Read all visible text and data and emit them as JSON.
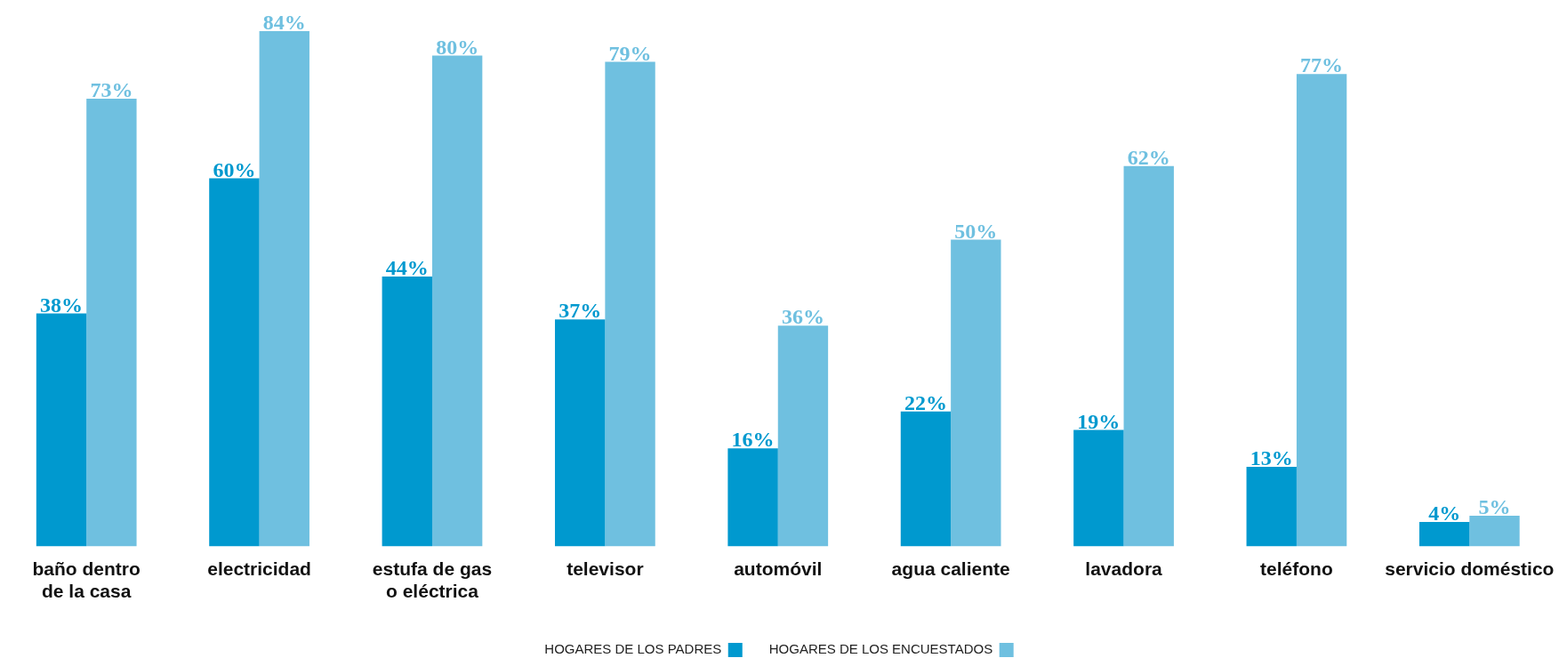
{
  "chart_data": {
    "type": "bar",
    "categories": [
      "baño dentro\nde la casa",
      "electricidad",
      "estufa de gas\no eléctrica",
      "televisor",
      "automóvil",
      "agua caliente",
      "lavadora",
      "teléfono",
      "servicio doméstico"
    ],
    "series": [
      {
        "name": "HOGARES DE LOS PADRES",
        "color": "#0099cf",
        "values": [
          38,
          60,
          44,
          37,
          16,
          22,
          19,
          13,
          4
        ],
        "value_labels": [
          "38%",
          "60%",
          "44%",
          "37%",
          "16%",
          "22%",
          "19%",
          "13%",
          "4%"
        ]
      },
      {
        "name": "HOGARES DE LOS ENCUESTADOS",
        "color": "#6fc0e0",
        "values": [
          73,
          84,
          80,
          79,
          36,
          50,
          62,
          77,
          5
        ],
        "value_labels": [
          "73%",
          "84%",
          "80%",
          "79%",
          "36%",
          "50%",
          "62%",
          "77%",
          "5%"
        ]
      }
    ],
    "legend": "bottom",
    "grid": false
  }
}
